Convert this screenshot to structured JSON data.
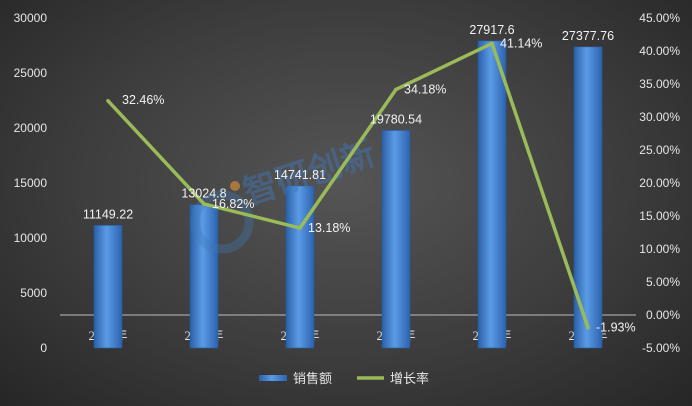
{
  "chart_data": {
    "type": "bar+line",
    "categories": [
      "2013年",
      "2014年",
      "2015年",
      "2016年",
      "2017年",
      "2018年"
    ],
    "series": [
      {
        "name": "销售额",
        "type": "bar",
        "axis": "left",
        "values": [
          11149.22,
          13024.8,
          14741.81,
          19780.54,
          27917.6,
          27377.76
        ],
        "labels": [
          "11149.22",
          "13024.8",
          "14741.81",
          "19780.54",
          "27917.6",
          "27377.76"
        ],
        "color": "#3e7fd0"
      },
      {
        "name": "增长率",
        "type": "line",
        "axis": "right",
        "values": [
          32.46,
          16.82,
          13.18,
          34.18,
          41.14,
          -1.93
        ],
        "labels": [
          "32.46%",
          "16.82%",
          "13.18%",
          "34.18%",
          "41.14%",
          "-1.93%"
        ],
        "color": "#9bbb59"
      }
    ],
    "y_left": {
      "min": 0,
      "max": 30000,
      "ticks": [
        "0",
        "5000",
        "10000",
        "15000",
        "20000",
        "25000",
        "30000"
      ]
    },
    "y_right": {
      "min": -5,
      "max": 45,
      "ticks": [
        "-5.00%",
        "0.00%",
        "5.00%",
        "10.00%",
        "15.00%",
        "20.00%",
        "25.00%",
        "30.00%",
        "35.00%",
        "40.00%",
        "45.00%"
      ]
    },
    "grid": false,
    "legend": "bottom"
  },
  "watermark": {
    "text": "智研创新"
  }
}
